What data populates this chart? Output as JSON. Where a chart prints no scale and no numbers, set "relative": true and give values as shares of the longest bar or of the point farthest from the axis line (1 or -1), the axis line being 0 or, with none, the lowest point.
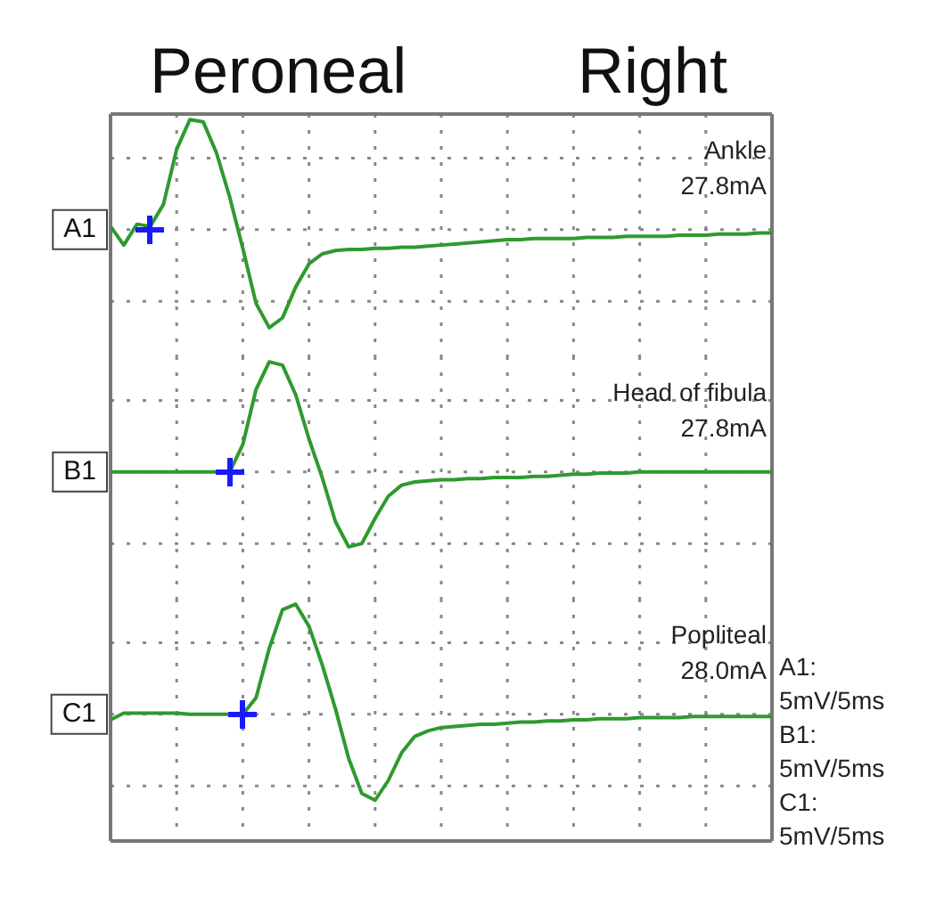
{
  "chart_data": [
    {
      "type": "line",
      "title": "Peroneal",
      "subtitle": "Right",
      "relative": true,
      "grid": true,
      "ylabel": "A1",
      "annotations": [
        "Ankle",
        "27.8mA"
      ],
      "categories": [
        null,
        null,
        null,
        null,
        null,
        null,
        null,
        null,
        null,
        null,
        null,
        null,
        null,
        null,
        null,
        null,
        null,
        null,
        null,
        null,
        null,
        null,
        null,
        null,
        null,
        null,
        null,
        null,
        null,
        null,
        null,
        null,
        null,
        null,
        null,
        null,
        null,
        null,
        null,
        null,
        null,
        null,
        null,
        null,
        null,
        null,
        null,
        null,
        null,
        null,
        null
      ],
      "series": [
        {
          "color": "#2e9a2e",
          "marker": "none",
          "values": [
            0.03,
            -0.14,
            0.05,
            0.03,
            0.23,
            0.73,
            1.0,
            0.98,
            0.7,
            0.3,
            -0.17,
            -0.67,
            -0.89,
            -0.8,
            -0.52,
            -0.31,
            -0.22,
            -0.19,
            -0.18,
            -0.18,
            -0.17,
            -0.17,
            -0.16,
            -0.16,
            -0.15,
            -0.14,
            -0.13,
            -0.12,
            -0.11,
            -0.1,
            -0.09,
            -0.09,
            -0.08,
            -0.08,
            -0.08,
            -0.08,
            -0.07,
            -0.07,
            -0.07,
            -0.06,
            -0.06,
            -0.06,
            -0.06,
            -0.05,
            -0.05,
            -0.05,
            -0.04,
            -0.04,
            -0.04,
            -0.03,
            -0.03
          ]
        }
      ]
    },
    {
      "type": "line",
      "relative": true,
      "grid": true,
      "ylabel": "B1",
      "annotations": [
        "Head of fibula",
        "27.8mA"
      ],
      "categories": [
        null,
        null,
        null,
        null,
        null,
        null,
        null,
        null,
        null,
        null,
        null,
        null,
        null,
        null,
        null,
        null,
        null,
        null,
        null,
        null,
        null,
        null,
        null,
        null,
        null,
        null,
        null,
        null,
        null,
        null,
        null,
        null,
        null,
        null,
        null,
        null,
        null,
        null,
        null,
        null,
        null,
        null,
        null,
        null,
        null,
        null,
        null,
        null,
        null,
        null,
        null
      ],
      "series": [
        {
          "color": "#2e9a2e",
          "marker": "none",
          "values": [
            0,
            0,
            0,
            0,
            0,
            0,
            0,
            0,
            0,
            0,
            0.25,
            0.75,
            1.0,
            0.97,
            0.7,
            0.3,
            -0.05,
            -0.45,
            -0.68,
            -0.65,
            -0.42,
            -0.22,
            -0.12,
            -0.09,
            -0.08,
            -0.07,
            -0.07,
            -0.06,
            -0.06,
            -0.05,
            -0.05,
            -0.05,
            -0.04,
            -0.04,
            -0.03,
            -0.02,
            -0.02,
            -0.01,
            -0.01,
            -0.01,
            0,
            0,
            0,
            0,
            0,
            0,
            0,
            0,
            0,
            0,
            0
          ]
        }
      ]
    },
    {
      "type": "line",
      "relative": true,
      "grid": true,
      "ylabel": "C1",
      "annotations": [
        "Popliteal",
        "28.0mA",
        "A1:",
        "5mV/5ms",
        "B1:",
        "5mV/5ms",
        "C1:",
        "5mV/5ms"
      ],
      "categories": [
        null,
        null,
        null,
        null,
        null,
        null,
        null,
        null,
        null,
        null,
        null,
        null,
        null,
        null,
        null,
        null,
        null,
        null,
        null,
        null,
        null,
        null,
        null,
        null,
        null,
        null,
        null,
        null,
        null,
        null,
        null,
        null,
        null,
        null,
        null,
        null,
        null,
        null,
        null,
        null,
        null,
        null,
        null,
        null,
        null,
        null,
        null,
        null,
        null,
        null,
        null
      ],
      "series": [
        {
          "color": "#2e9a2e",
          "marker": "none",
          "values": [
            -0.05,
            0.01,
            0.01,
            0.01,
            0.01,
            0.01,
            0,
            0,
            0,
            0,
            0,
            0.15,
            0.6,
            0.95,
            1.0,
            0.8,
            0.45,
            0.05,
            -0.4,
            -0.72,
            -0.78,
            -0.6,
            -0.35,
            -0.2,
            -0.15,
            -0.12,
            -0.11,
            -0.1,
            -0.09,
            -0.09,
            -0.08,
            -0.07,
            -0.07,
            -0.06,
            -0.06,
            -0.05,
            -0.05,
            -0.04,
            -0.04,
            -0.04,
            -0.03,
            -0.03,
            -0.03,
            -0.03,
            -0.02,
            -0.02,
            -0.02,
            -0.02,
            -0.02,
            -0.02,
            -0.02
          ]
        }
      ]
    }
  ]
}
